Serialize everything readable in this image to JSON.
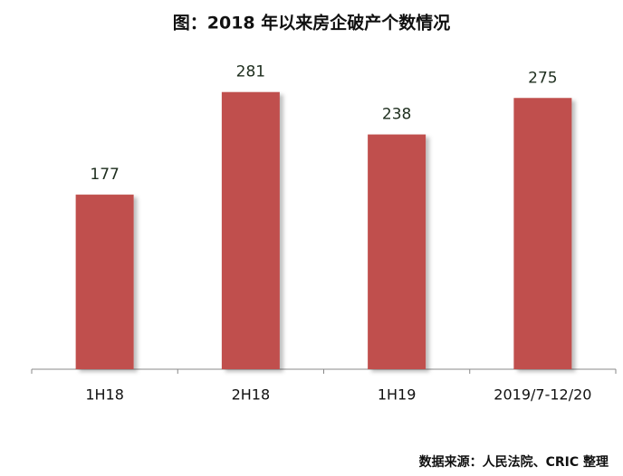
{
  "chart_data": {
    "type": "bar",
    "title": "图：2018 年以来房企破产个数情况",
    "categories": [
      "1H18",
      "2H18",
      "1H19",
      "2019/7-12/20"
    ],
    "values": [
      177,
      281,
      238,
      275
    ],
    "color": "#c0504d",
    "source": "数据来源：人民法院、CRIC 整理"
  }
}
